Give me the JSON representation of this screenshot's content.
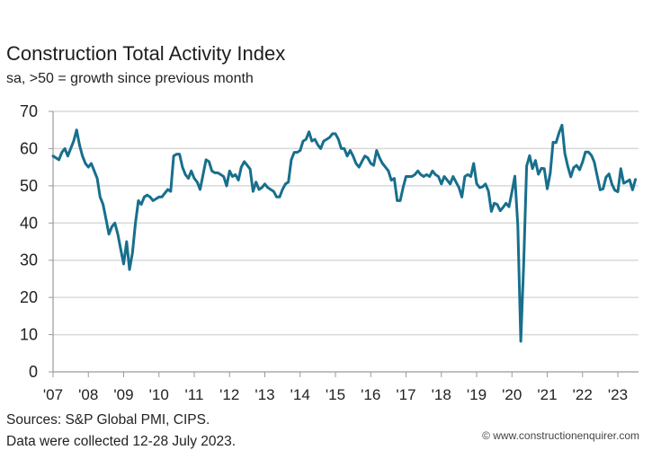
{
  "chart_data": {
    "type": "line",
    "title": "Construction Total Activity Index",
    "subtitle": "sa, >50 = growth since previous month",
    "xlabel": "",
    "ylabel": "",
    "ylim": [
      0,
      70
    ],
    "yticks": [
      0,
      10,
      20,
      30,
      40,
      50,
      60,
      70
    ],
    "xticks": [
      "'07",
      "'08",
      "'09",
      "'10",
      "'11",
      "'12",
      "'13",
      "'14",
      "'15",
      "'16",
      "'17",
      "'18",
      "'19",
      "'20",
      "'21",
      "'22",
      "'23"
    ],
    "start": "2007-01",
    "frequency": "monthly",
    "grid": true,
    "line_color": "#176f8c",
    "series": [
      {
        "name": "Construction Total Activity Index",
        "values": [
          58,
          57.5,
          57,
          59,
          60,
          58,
          60,
          62,
          65,
          61,
          58,
          56,
          55,
          56,
          54,
          52,
          47,
          45,
          41,
          37,
          39,
          40,
          37,
          33,
          29,
          35,
          27.5,
          32,
          40,
          46,
          45,
          47,
          47.5,
          47,
          46,
          46.5,
          47,
          47,
          48,
          49,
          48.5,
          58,
          58.5,
          58.5,
          55,
          53,
          52,
          54,
          52,
          51,
          49,
          53,
          57,
          56.5,
          54,
          53.5,
          53.5,
          53,
          52.5,
          50,
          54,
          52.5,
          53,
          51.5,
          55,
          56.5,
          55.5,
          54.5,
          48.5,
          51,
          49,
          49.5,
          50.5,
          49.5,
          49,
          48.5,
          47,
          47,
          49,
          50.5,
          51,
          57,
          59,
          59,
          59.5,
          62,
          62.5,
          64.5,
          62,
          62.5,
          61,
          60,
          62,
          62.5,
          63,
          64,
          64,
          62.5,
          60,
          60,
          58,
          59.5,
          58,
          56,
          55,
          56.5,
          58,
          57.5,
          56,
          55.5,
          59.5,
          57.5,
          56,
          55,
          54,
          51.5,
          52,
          46,
          46,
          49.5,
          52.5,
          52.5,
          52.5,
          53,
          54,
          53,
          52.5,
          53,
          52.5,
          54,
          53,
          52.5,
          50.5,
          52.5,
          51.5,
          50.5,
          52.5,
          51,
          49.5,
          47,
          52.5,
          53,
          52.5,
          56,
          50.6,
          49.5,
          49.7,
          50.5,
          48.6,
          43.1,
          45.3,
          45,
          43.3,
          44.2,
          45.3,
          44.4,
          48.4,
          52.6,
          39.3,
          8.2,
          28.9,
          55.3,
          58.1,
          54.6,
          56.8,
          53.1,
          54.7,
          54.6,
          49.2,
          53.3,
          61.7,
          61.6,
          64.2,
          66.3,
          58.7,
          55.2,
          52.4,
          54.9,
          55.5,
          54.3,
          56.4,
          59.1,
          59.1,
          58.2,
          56.4,
          52.6,
          48.9,
          49.2,
          52.3,
          53.2,
          50.4,
          48.8,
          48.4,
          54.6,
          50.7,
          51.1,
          51.6,
          48.9,
          51.7
        ]
      }
    ]
  },
  "footer": {
    "source": "Sources: S&P Global PMI, CIPS.",
    "collected": "Data were collected 12-28 July 2023.",
    "watermark": "© www.constructionenquirer.com"
  }
}
